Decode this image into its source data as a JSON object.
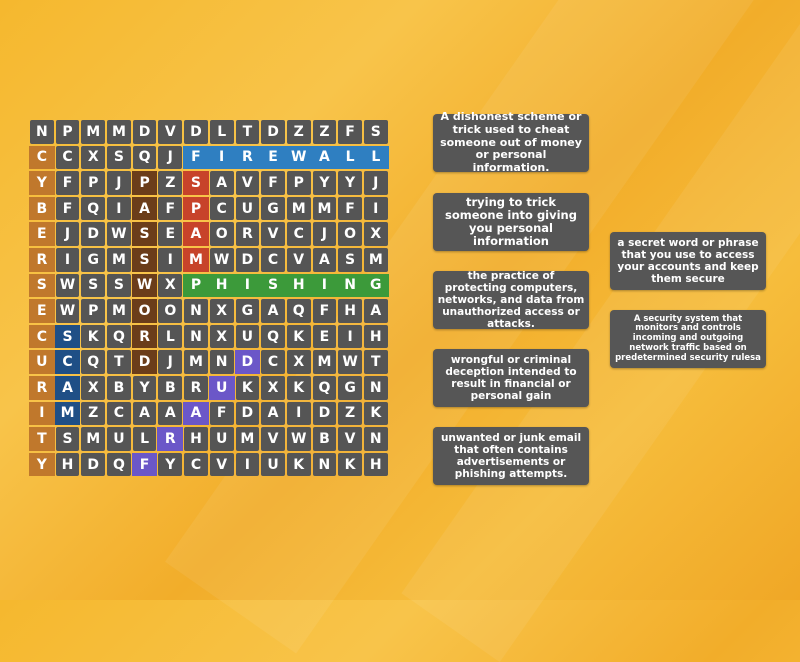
{
  "grid": [
    "NPMMDVDLTDZZFS",
    "CCXSQJFIREWALL",
    "YFPJPZSAVFPYYJ",
    "BFQIAFPCUGMMFI",
    "EJDWSEAORVCJOX",
    "RIGMSIMWDCVASM",
    "SWSSWXPHISHING",
    "EWPMOONXGAQFHA",
    "CSKQRLNXUQKEIH",
    "UCQTDJMNDCXMWT",
    "RAXBYBRUKXKQGN",
    "IMZCAAAFDAIDZK",
    "TSMULRHUMVWBVN",
    "YHDQFYCVIUKNKH"
  ],
  "found_words": [
    {
      "word": "CYBERSECURITY",
      "color": "#c0782c",
      "start": [
        1,
        0
      ],
      "dir": [
        1,
        0
      ]
    },
    {
      "word": "FIREWALL",
      "color": "#2f7fc1",
      "start": [
        1,
        6
      ],
      "dir": [
        0,
        1
      ]
    },
    {
      "word": "SPAM",
      "color": "#c7432a",
      "start": [
        2,
        6
      ],
      "dir": [
        1,
        0
      ]
    },
    {
      "word": "PASSWORD",
      "color": "#6b3d1a",
      "start": [
        2,
        4
      ],
      "dir": [
        1,
        0
      ]
    },
    {
      "word": "PHISHING",
      "color": "#3c9a3a",
      "start": [
        6,
        6
      ],
      "dir": [
        0,
        1
      ]
    },
    {
      "word": "SCAM",
      "color": "#1f4f86",
      "start": [
        8,
        1
      ],
      "dir": [
        1,
        0
      ]
    },
    {
      "word": "FRAUD",
      "color": "#6b57c8",
      "start": [
        13,
        4
      ],
      "dir": [
        -1,
        1
      ]
    }
  ],
  "clues": [
    "A dishonest scheme or trick used to cheat someone out of money or personal information.",
    "trying to trick someone into giving you personal information",
    "the practice of protecting computers, networks, and data from unauthorized access or attacks.",
    "wrongful or criminal deception intended to result in financial or personal gain",
    "unwanted or junk email that often contains advertisements or phishing attempts.",
    "a secret word or phrase that you use to access your accounts and keep them secure",
    "A security system that monitors and controls incoming and outgoing network traffic based on predetermined security rulesa"
  ]
}
